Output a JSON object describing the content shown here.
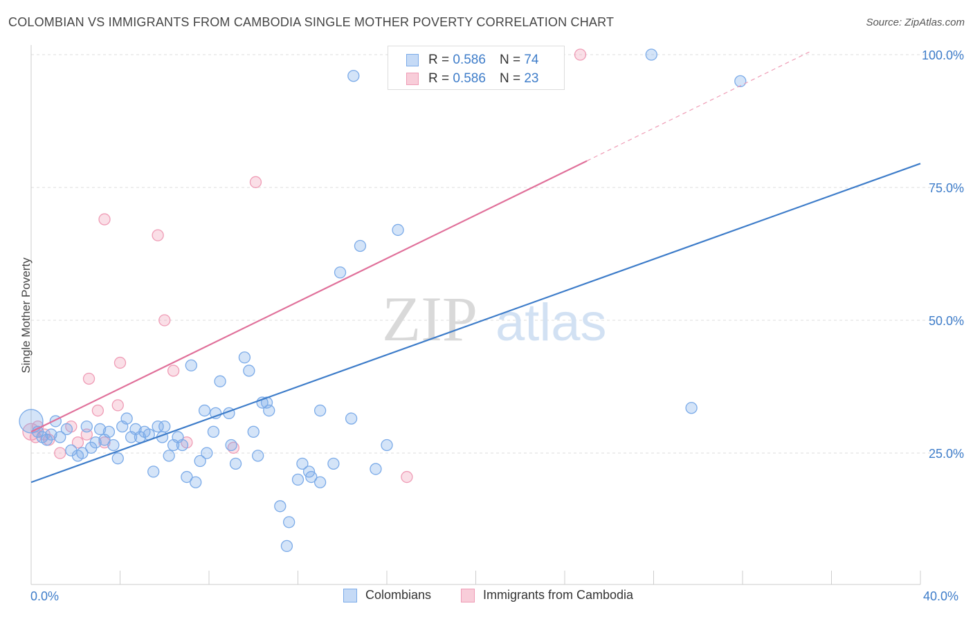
{
  "title": "COLOMBIAN VS IMMIGRANTS FROM CAMBODIA SINGLE MOTHER POVERTY CORRELATION CHART",
  "source": "Source: ZipAtlas.com",
  "watermark": {
    "zip": "ZIP",
    "atlas": "atlas"
  },
  "legend_top": [
    {
      "r_label": "R =",
      "r_value": "0.586",
      "n_label": "N =",
      "n_value": "74",
      "color": "#7aaae8",
      "fill": "#c5daf6"
    },
    {
      "r_label": "R =",
      "r_value": "0.586",
      "n_label": "N =",
      "n_value": "23",
      "color": "#ef9bb5",
      "fill": "#f8cdd9"
    }
  ],
  "legend_bottom": [
    {
      "label": "Colombians",
      "color": "#7aaae8",
      "fill": "#c5daf6"
    },
    {
      "label": "Immigrants from Cambodia",
      "color": "#ef9bb5",
      "fill": "#f8cdd9"
    }
  ],
  "chart_data": {
    "type": "scatter",
    "ylabel": "Single Mother Poverty",
    "xlim": [
      0,
      40
    ],
    "ylim": [
      0,
      102
    ],
    "x_tick_labels": [
      "0.0%",
      "40.0%"
    ],
    "y_ticks": [
      25,
      50,
      75,
      100
    ],
    "y_tick_labels": [
      "25.0%",
      "50.0%",
      "75.0%",
      "100.0%"
    ],
    "grid": true,
    "legend_position": "top-center",
    "series": [
      {
        "name": "Colombians",
        "color": "#3d7cc9",
        "point_color": "#7aaae8",
        "trend": {
          "x0": 0,
          "y0": 19.5,
          "x1": 40,
          "y1": 79.5
        },
        "points": [
          [
            0.0,
            31.0
          ],
          [
            0.3,
            29.0
          ],
          [
            0.5,
            28.0
          ],
          [
            0.7,
            27.5
          ],
          [
            0.9,
            28.5
          ],
          [
            1.1,
            31.0
          ],
          [
            1.3,
            28.0
          ],
          [
            1.6,
            29.5
          ],
          [
            1.8,
            25.5
          ],
          [
            2.1,
            24.5
          ],
          [
            2.3,
            25.0
          ],
          [
            2.5,
            30.0
          ],
          [
            2.7,
            26.0
          ],
          [
            2.9,
            27.0
          ],
          [
            3.1,
            29.5
          ],
          [
            3.3,
            27.5
          ],
          [
            3.5,
            29.0
          ],
          [
            3.7,
            26.5
          ],
          [
            3.9,
            24.0
          ],
          [
            4.1,
            30.0
          ],
          [
            4.3,
            31.5
          ],
          [
            4.5,
            28.0
          ],
          [
            4.7,
            29.5
          ],
          [
            4.9,
            28.0
          ],
          [
            5.1,
            29.0
          ],
          [
            5.3,
            28.5
          ],
          [
            5.5,
            21.5
          ],
          [
            5.7,
            30.0
          ],
          [
            5.9,
            28.0
          ],
          [
            6.0,
            30.0
          ],
          [
            6.2,
            24.5
          ],
          [
            6.4,
            26.5
          ],
          [
            6.6,
            28.0
          ],
          [
            6.8,
            26.5
          ],
          [
            7.0,
            20.5
          ],
          [
            7.2,
            41.5
          ],
          [
            7.4,
            19.5
          ],
          [
            7.6,
            23.5
          ],
          [
            7.8,
            33.0
          ],
          [
            7.9,
            25.0
          ],
          [
            8.2,
            29.0
          ],
          [
            8.3,
            32.5
          ],
          [
            8.5,
            38.5
          ],
          [
            8.9,
            32.5
          ],
          [
            9.0,
            26.5
          ],
          [
            9.2,
            23.0
          ],
          [
            9.6,
            43.0
          ],
          [
            9.8,
            40.5
          ],
          [
            10.0,
            29.0
          ],
          [
            10.2,
            24.5
          ],
          [
            10.4,
            34.5
          ],
          [
            10.6,
            34.5
          ],
          [
            10.7,
            33.0
          ],
          [
            11.2,
            15.0
          ],
          [
            11.6,
            12.0
          ],
          [
            11.5,
            7.5
          ],
          [
            12.0,
            20.0
          ],
          [
            12.2,
            23.0
          ],
          [
            12.5,
            21.5
          ],
          [
            12.6,
            20.5
          ],
          [
            13.0,
            33.0
          ],
          [
            13.0,
            19.5
          ],
          [
            13.6,
            23.0
          ],
          [
            14.4,
            31.5
          ],
          [
            14.8,
            64.0
          ],
          [
            15.5,
            22.0
          ],
          [
            16.0,
            26.5
          ],
          [
            16.5,
            67.0
          ],
          [
            17.5,
            100.0
          ],
          [
            13.9,
            59.0
          ],
          [
            27.9,
            100.0
          ],
          [
            31.9,
            95.0
          ],
          [
            29.7,
            33.5
          ],
          [
            14.5,
            96.0
          ]
        ],
        "sizes": [
          3.4
        ]
      },
      {
        "name": "Immigrants from Cambodia",
        "color": "#e0709a",
        "point_color": "#ef9bb5",
        "trend": {
          "x0": 0,
          "y0": 29.0,
          "x1": 25.0,
          "y1": 80.0,
          "x_dash_end": 40,
          "y_dash_end": 110.5
        },
        "points": [
          [
            0.0,
            29.0
          ],
          [
            0.3,
            30.0
          ],
          [
            0.6,
            28.5
          ],
          [
            0.8,
            27.5
          ],
          [
            1.3,
            25.0
          ],
          [
            1.8,
            30.0
          ],
          [
            2.1,
            27.0
          ],
          [
            2.5,
            28.5
          ],
          [
            2.6,
            39.0
          ],
          [
            3.0,
            33.0
          ],
          [
            3.3,
            27.0
          ],
          [
            3.3,
            69.0
          ],
          [
            3.9,
            34.0
          ],
          [
            4.0,
            42.0
          ],
          [
            5.7,
            66.0
          ],
          [
            6.0,
            50.0
          ],
          [
            6.4,
            40.5
          ],
          [
            7.0,
            27.0
          ],
          [
            9.1,
            26.0
          ],
          [
            10.1,
            76.0
          ],
          [
            16.9,
            20.5
          ],
          [
            24.7,
            100.0
          ],
          [
            0.2,
            28.0
          ]
        ]
      }
    ]
  }
}
